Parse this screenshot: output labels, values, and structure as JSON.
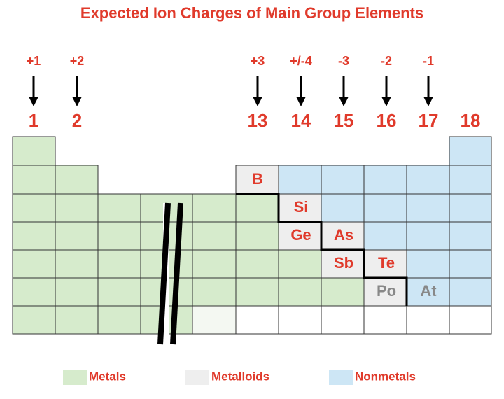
{
  "title": "Expected Ion Charges of Main Group Elements",
  "groups": [
    {
      "number": "1",
      "charge": "+1"
    },
    {
      "number": "2",
      "charge": "+2"
    },
    {
      "number": "13",
      "charge": "+3"
    },
    {
      "number": "14",
      "charge": "+/-4"
    },
    {
      "number": "15",
      "charge": "-3"
    },
    {
      "number": "16",
      "charge": "-2"
    },
    {
      "number": "17",
      "charge": "-1"
    },
    {
      "number": "18"
    }
  ],
  "elements": [
    "B",
    "Si",
    "Ge",
    "As",
    "Sb",
    "Te",
    "Po",
    "At"
  ],
  "legend": [
    "Metals",
    "Metalloids",
    "Nonmetals"
  ]
}
